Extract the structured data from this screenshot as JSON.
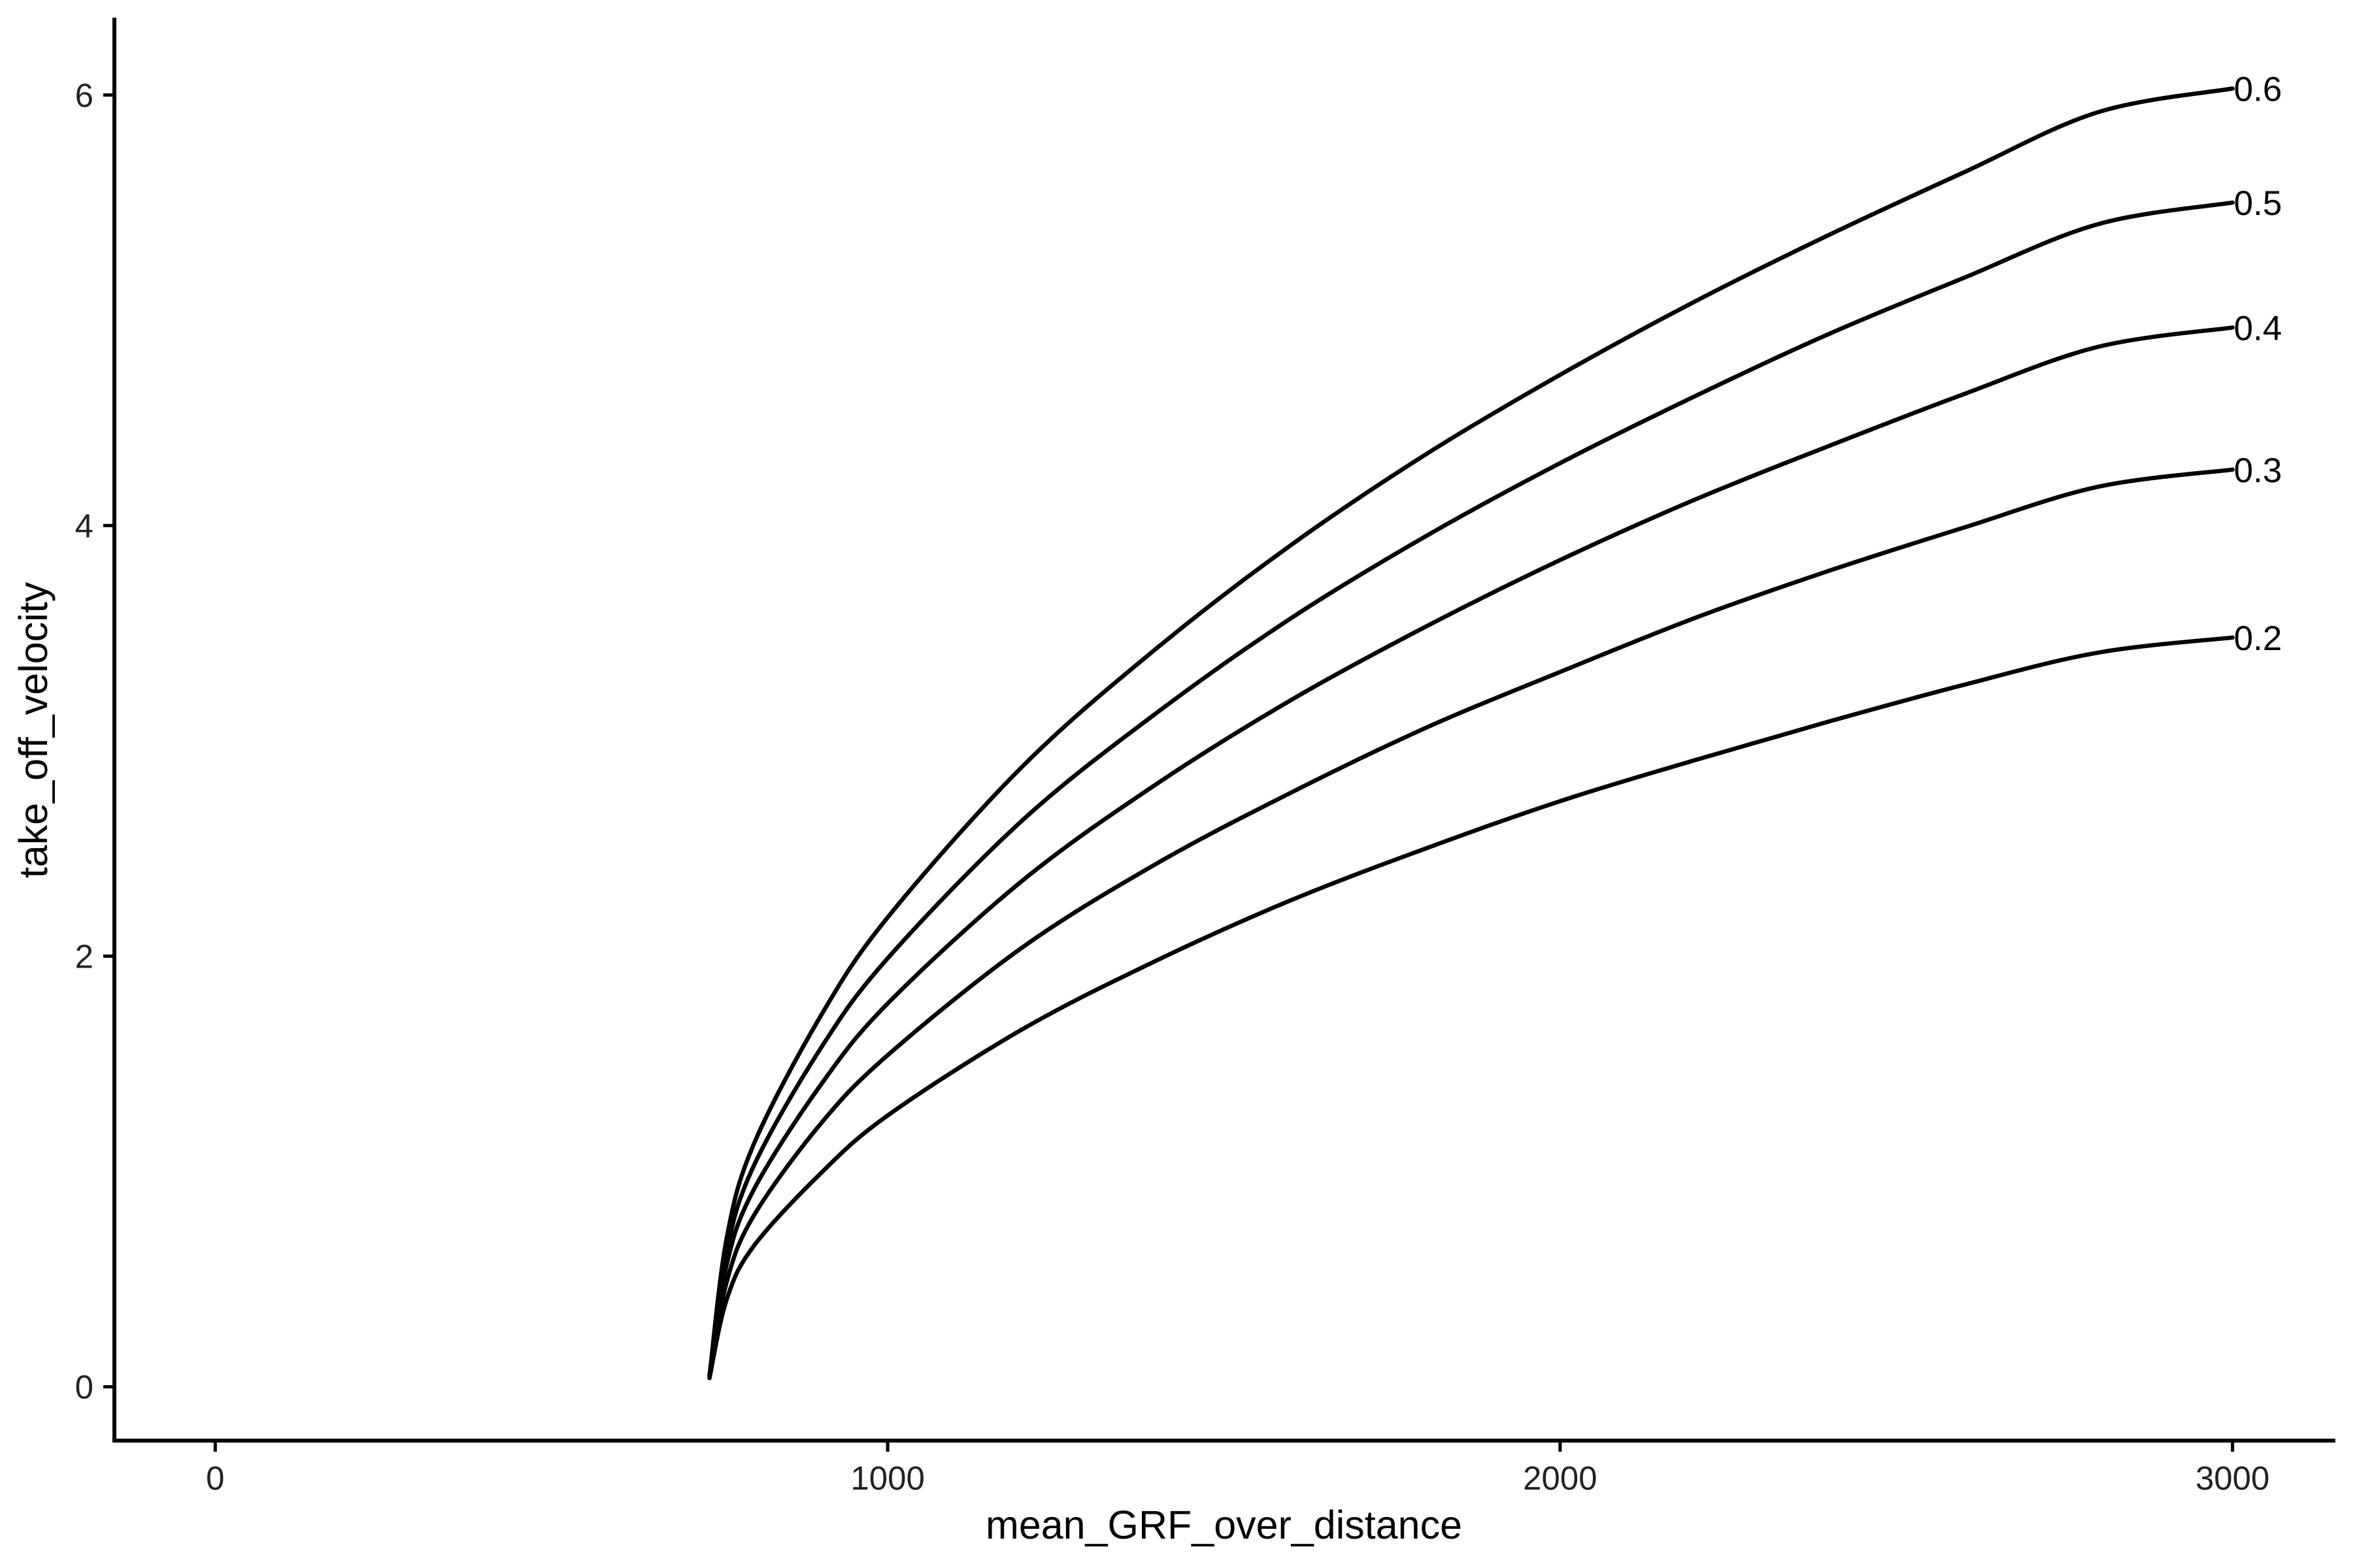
{
  "chart_data": {
    "type": "line",
    "xlabel": "mean_GRF_over_distance",
    "ylabel": "take_off_velocity",
    "xlim": [
      -150,
      3150
    ],
    "ylim": [
      -0.25,
      6.35
    ],
    "x_ticks": [
      0,
      1000,
      2000,
      3000
    ],
    "y_ticks": [
      0,
      2,
      4,
      6
    ],
    "grid": false,
    "legend": "none (series labelled at line ends)",
    "line_color": "#000000",
    "x": [
      735,
      760,
      800,
      900,
      1000,
      1200,
      1400,
      1600,
      1800,
      2000,
      2200,
      2400,
      2600,
      2800,
      3000
    ],
    "series": [
      {
        "name": "0.2",
        "values": [
          0.04,
          0.4,
          0.65,
          0.99,
          1.26,
          1.66,
          1.98,
          2.26,
          2.5,
          2.72,
          2.91,
          3.09,
          3.26,
          3.41,
          3.48
        ]
      },
      {
        "name": "0.3",
        "values": [
          0.05,
          0.48,
          0.79,
          1.22,
          1.54,
          2.04,
          2.43,
          2.76,
          3.06,
          3.32,
          3.57,
          3.79,
          3.99,
          4.18,
          4.26
        ]
      },
      {
        "name": "0.4",
        "values": [
          0.05,
          0.56,
          0.91,
          1.4,
          1.78,
          2.35,
          2.8,
          3.19,
          3.53,
          3.84,
          4.12,
          4.37,
          4.61,
          4.83,
          4.92
        ]
      },
      {
        "name": "0.5",
        "values": [
          0.05,
          0.62,
          1.02,
          1.57,
          1.99,
          2.63,
          3.13,
          3.57,
          3.95,
          4.29,
          4.6,
          4.89,
          5.15,
          5.4,
          5.5
        ]
      },
      {
        "name": "0.6",
        "values": [
          0.05,
          0.68,
          1.12,
          1.72,
          2.18,
          2.88,
          3.43,
          3.91,
          4.33,
          4.7,
          5.04,
          5.35,
          5.64,
          5.92,
          6.03
        ]
      }
    ]
  }
}
